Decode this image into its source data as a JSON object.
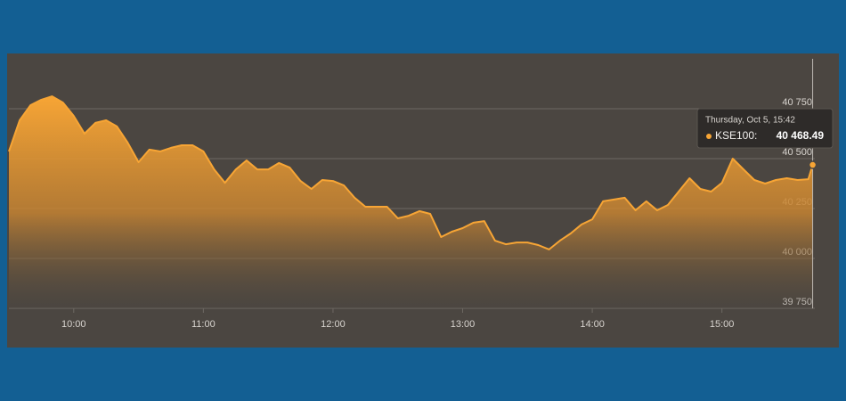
{
  "chart_data": {
    "type": "area",
    "color": "#f7a535",
    "x": [
      "09:30",
      "09:35",
      "09:40",
      "09:45",
      "09:50",
      "09:55",
      "10:00",
      "10:05",
      "10:10",
      "10:15",
      "10:20",
      "10:25",
      "10:30",
      "10:35",
      "10:40",
      "10:45",
      "10:50",
      "10:55",
      "11:00",
      "11:05",
      "11:10",
      "11:15",
      "11:20",
      "11:25",
      "11:30",
      "11:35",
      "11:40",
      "11:45",
      "11:50",
      "11:55",
      "12:00",
      "12:05",
      "12:10",
      "12:15",
      "12:20",
      "12:25",
      "12:30",
      "12:35",
      "12:40",
      "12:45",
      "12:50",
      "12:55",
      "13:00",
      "13:05",
      "13:10",
      "13:15",
      "13:20",
      "13:25",
      "13:30",
      "13:35",
      "13:40",
      "13:45",
      "13:50",
      "13:55",
      "14:00",
      "14:05",
      "14:10",
      "14:15",
      "14:20",
      "14:25",
      "14:30",
      "14:35",
      "14:40",
      "14:45",
      "14:50",
      "14:55",
      "15:00",
      "15:05",
      "15:10",
      "15:15",
      "15:20",
      "15:25",
      "15:30",
      "15:35",
      "15:40",
      "15:42"
    ],
    "values": [
      40536,
      40692,
      40768,
      40795,
      40812,
      40781,
      40714,
      40625,
      40679,
      40692,
      40661,
      40580,
      40482,
      40545,
      40536,
      40554,
      40567,
      40567,
      40536,
      40446,
      40379,
      40446,
      40491,
      40446,
      40446,
      40478,
      40455,
      40388,
      40348,
      40393,
      40388,
      40366,
      40304,
      40259,
      40259,
      40259,
      40201,
      40214,
      40237,
      40223,
      40107,
      40134,
      40152,
      40179,
      40187,
      40089,
      40071,
      40080,
      40080,
      40067,
      40045,
      40089,
      40125,
      40170,
      40196,
      40286,
      40295,
      40304,
      40241,
      40286,
      40241,
      40268,
      40335,
      40402,
      40348,
      40335,
      40379,
      40500,
      40446,
      40393,
      40375,
      40393,
      40402,
      40393,
      40397,
      40468.49
    ],
    "xlim": [
      "09:30",
      "15:43"
    ],
    "xticks": [
      "10:00",
      "11:00",
      "12:00",
      "13:00",
      "14:00",
      "15:00"
    ],
    "ylim": [
      39750,
      41000
    ],
    "yticks": [
      {
        "value": 39750,
        "label": "39 750"
      },
      {
        "value": 40000,
        "label": "40 000"
      },
      {
        "value": 40250,
        "label": "40 250"
      },
      {
        "value": 40500,
        "label": "40 500"
      },
      {
        "value": 40750,
        "label": "40 750"
      }
    ],
    "grid": true,
    "tooltip": {
      "header": "Thursday, Oct 5, 15:42",
      "series_label": "KSE100:",
      "value_label": "40 468.49"
    }
  }
}
